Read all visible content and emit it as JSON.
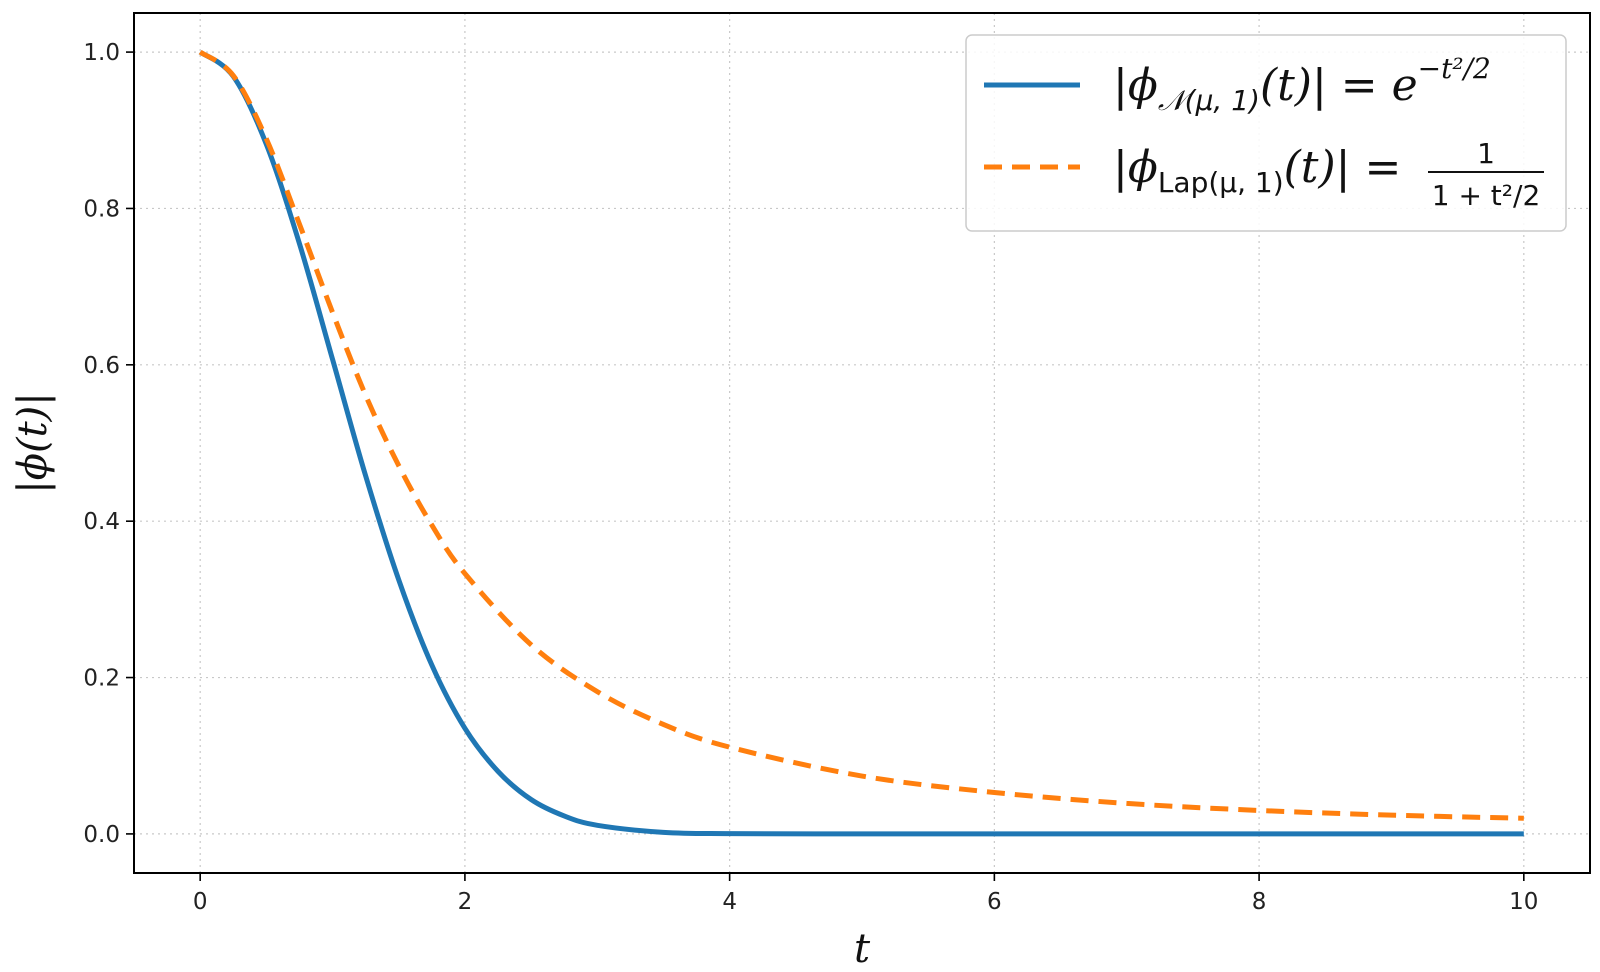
{
  "chart_data": {
    "type": "line",
    "title": "",
    "xlabel": "t",
    "ylabel": "|ϕ(t)|",
    "xlim": [
      -0.5,
      10.5
    ],
    "ylim": [
      -0.05,
      1.05
    ],
    "xticks": [
      0,
      2,
      4,
      6,
      8,
      10
    ],
    "xtick_labels": [
      "0",
      "2",
      "4",
      "6",
      "8",
      "10"
    ],
    "yticks": [
      0.0,
      0.2,
      0.4,
      0.6,
      0.8,
      1.0
    ],
    "ytick_labels": [
      "0.0",
      "0.2",
      "0.4",
      "0.6",
      "0.8",
      "1.0"
    ],
    "grid": true,
    "legend_position": "top-right",
    "series": [
      {
        "name": "|ϕ𝒩(μ, 1)(t)| = e^(−t²/2)",
        "color": "#1f77b4",
        "style": "solid",
        "x": [
          0,
          0.25,
          0.5,
          0.75,
          1.0,
          1.25,
          1.5,
          1.75,
          2.0,
          2.25,
          2.5,
          2.75,
          3.0,
          3.5,
          4.0,
          5.0,
          6.0,
          7.0,
          8.0,
          9.0,
          10.0
        ],
        "values": [
          1.0,
          0.969,
          0.882,
          0.755,
          0.607,
          0.458,
          0.325,
          0.216,
          0.135,
          0.08,
          0.044,
          0.023,
          0.011,
          0.002,
          0.0003,
          0.0,
          0.0,
          0.0,
          0.0,
          0.0,
          0.0
        ]
      },
      {
        "name": "|ϕLap(μ, 1)(t)| = 1/(1 + t²/2)",
        "color": "#ff7f0e",
        "style": "dashed",
        "x": [
          0,
          0.25,
          0.5,
          0.75,
          1.0,
          1.25,
          1.5,
          1.75,
          2.0,
          2.5,
          3.0,
          3.5,
          4.0,
          5.0,
          6.0,
          7.0,
          8.0,
          9.0,
          10.0
        ],
        "values": [
          1.0,
          0.97,
          0.889,
          0.78,
          0.667,
          0.561,
          0.471,
          0.395,
          0.333,
          0.242,
          0.182,
          0.14,
          0.111,
          0.074,
          0.053,
          0.039,
          0.03,
          0.024,
          0.02
        ]
      }
    ]
  },
  "legend": {
    "normal": {
      "phi": "ϕ",
      "sub": "𝒩(μ, 1)",
      "arg": "(t)",
      "eq": "| = ",
      "base": "e",
      "exp": "−t²/2"
    },
    "laplace": {
      "phi": "ϕ",
      "sub": "Lap(μ, 1)",
      "arg": "(t)",
      "eq": "| = ",
      "num": "1",
      "den": "1 + t²/2"
    }
  }
}
